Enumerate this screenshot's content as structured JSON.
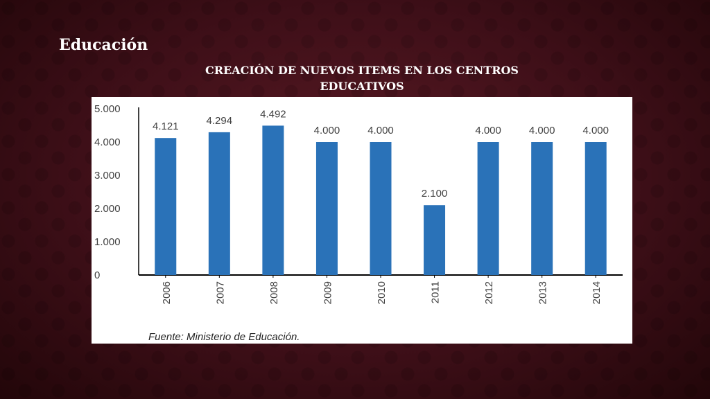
{
  "slide": {
    "title": "Educación",
    "chart_title_line1": "CREACIÓN DE NUEVOS ITEMS EN LOS CENTROS",
    "chart_title_line2": "EDUCATIVOS",
    "source": "Fuente: Ministerio de Educación."
  },
  "colors": {
    "bar": "#2a72b8",
    "background": "#4a121c",
    "axis": "#000000",
    "text": "#404040"
  },
  "chart_data": {
    "type": "bar",
    "categories": [
      "2006",
      "2007",
      "2008",
      "2009",
      "2010",
      "2011",
      "2012",
      "2013",
      "2014"
    ],
    "values": [
      4121,
      4294,
      4492,
      4000,
      4000,
      2100,
      4000,
      4000,
      4000
    ],
    "data_labels": [
      "4.121",
      "4.294",
      "4.492",
      "4.000",
      "4.000",
      "2.100",
      "4.000",
      "4.000",
      "4.000"
    ],
    "ylim": [
      0,
      5000
    ],
    "yticks": [
      0,
      1000,
      2000,
      3000,
      4000,
      5000
    ],
    "ytick_labels": [
      "0",
      "1.000",
      "2.000",
      "3.000",
      "4.000",
      "5.000"
    ],
    "xlabel": "",
    "ylabel": "",
    "grid": false,
    "legend": "none"
  }
}
